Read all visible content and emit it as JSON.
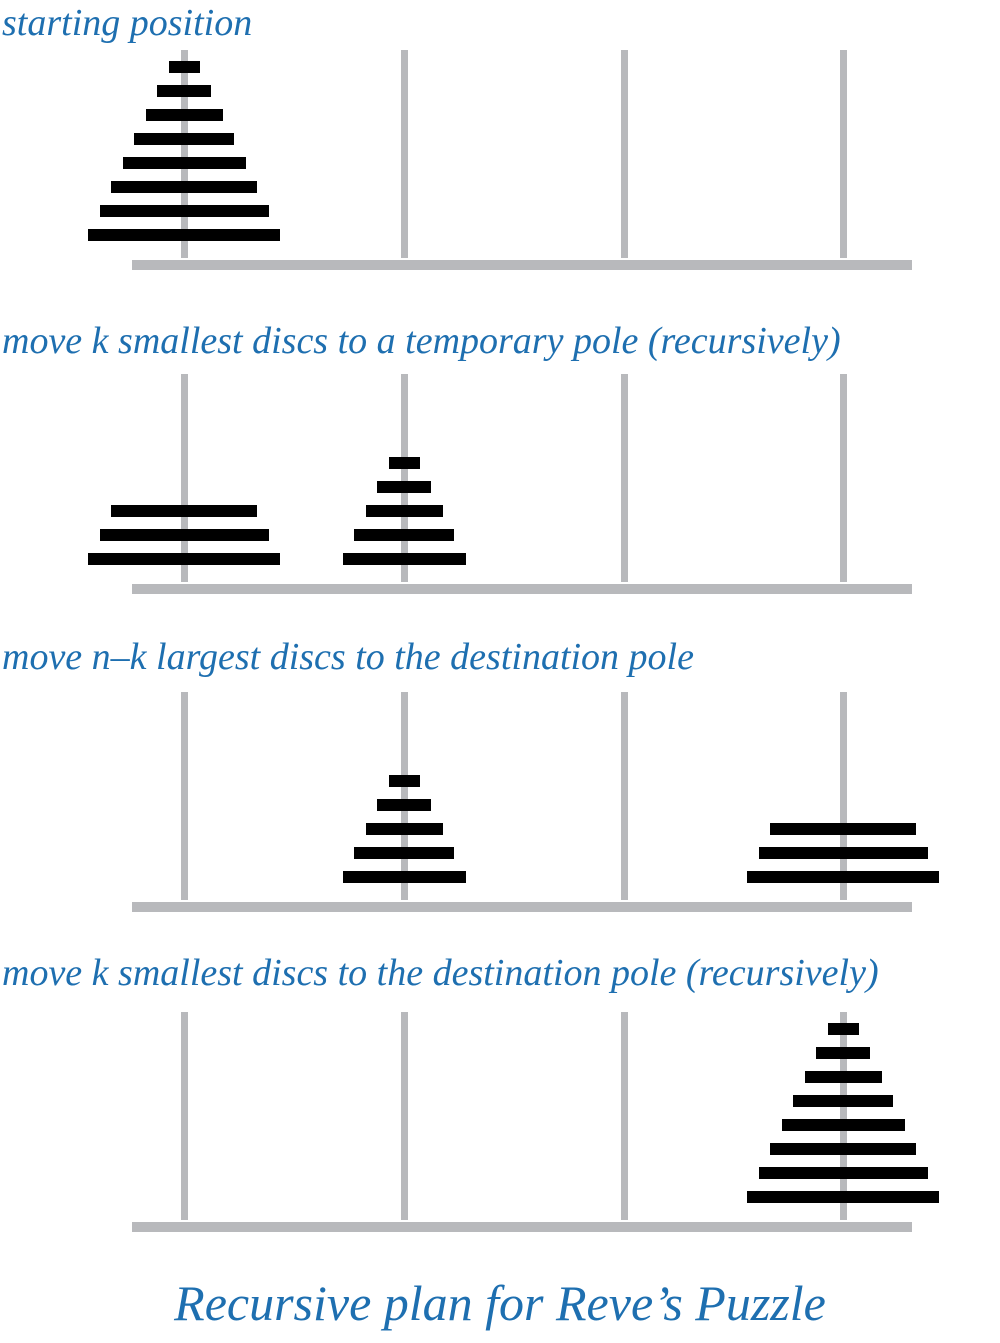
{
  "colors": {
    "label": "#1e6fb0",
    "caption": "#1e6fb0",
    "pole": "#b8b9bc",
    "disc": "#000000"
  },
  "caption": "Recursive plan for Reve’s Puzzle",
  "steps": [
    {
      "label": "starting position",
      "disc_counts": [
        8,
        0,
        0,
        0
      ],
      "disc_sizes": [
        [
          1,
          2,
          3,
          4,
          5,
          6,
          7,
          8
        ],
        [],
        [],
        []
      ]
    },
    {
      "label": "move k smallest discs to a temporary pole (recursively)",
      "disc_counts": [
        3,
        5,
        0,
        0
      ],
      "disc_sizes": [
        [
          6,
          7,
          8
        ],
        [
          1,
          2,
          3,
          4,
          5
        ],
        [],
        []
      ]
    },
    {
      "label": "move n–k largest discs to the destination pole",
      "disc_counts": [
        0,
        5,
        0,
        3
      ],
      "disc_sizes": [
        [],
        [
          1,
          2,
          3,
          4,
          5
        ],
        [],
        [
          6,
          7,
          8
        ]
      ]
    },
    {
      "label": "move k smallest discs to the destination pole (recursively)",
      "disc_counts": [
        0,
        0,
        0,
        8
      ],
      "disc_sizes": [
        [],
        [],
        [],
        [
          1,
          2,
          3,
          4,
          5,
          6,
          7,
          8
        ]
      ]
    }
  ]
}
